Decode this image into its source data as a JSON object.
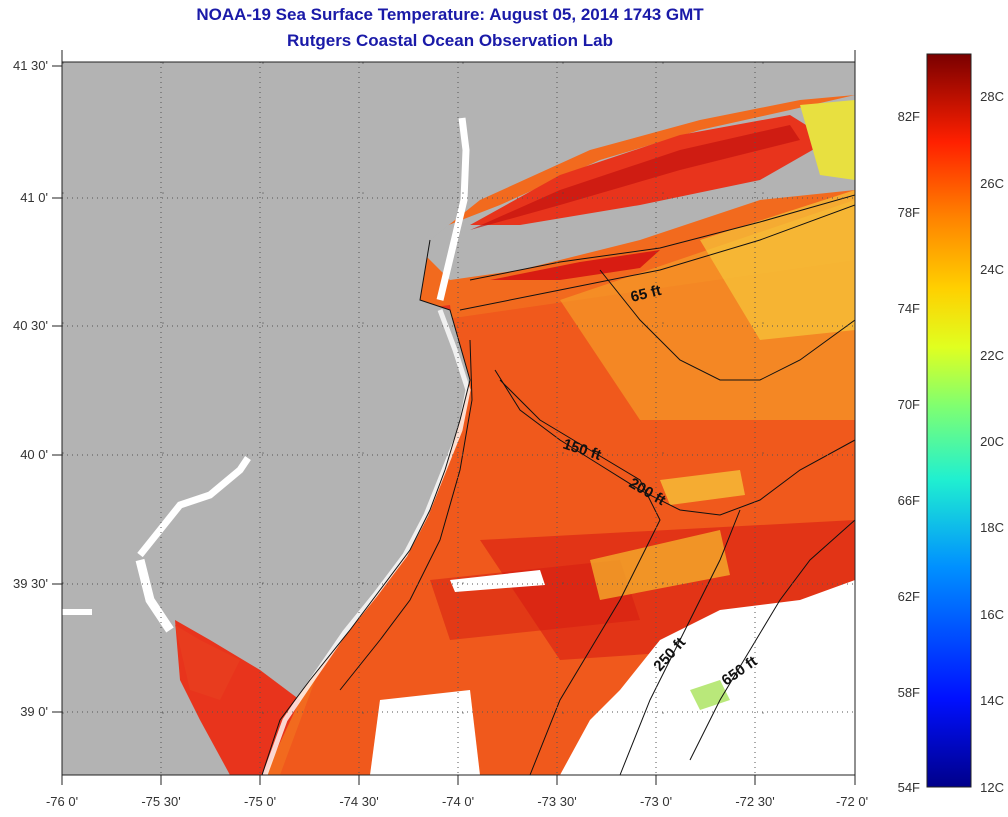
{
  "header": {
    "title": "NOAA-19 Sea Surface Temperature:  August 05, 2014 1743 GMT",
    "subtitle": "Rutgers Coastal Ocean Observation Lab"
  },
  "axes": {
    "x_ticks": [
      "-76 0'",
      "-75 30'",
      "-75 0'",
      "-74 30'",
      "-74 0'",
      "-73 30'",
      "-73 0'",
      "-72 30'",
      "-72 0'"
    ],
    "y_ticks": [
      "41 30'",
      "41 0'",
      "40 30'",
      "40 0'",
      "39 30'",
      "39 0'"
    ]
  },
  "colorbar": {
    "fahrenheit_labels": [
      "82F",
      "78F",
      "74F",
      "70F",
      "66F",
      "62F",
      "58F",
      "54F"
    ],
    "celsius_labels": [
      "28C",
      "26C",
      "24C",
      "22C",
      "20C",
      "18C",
      "16C",
      "14C",
      "12C"
    ]
  },
  "contours": {
    "labels": [
      "65 ft",
      "150 ft",
      "200 ft",
      "250 ft",
      "650 ft"
    ]
  },
  "colors": {
    "land": "#b3b3b3",
    "title": "#1a1aa8",
    "warm": "#e8341c",
    "hot": "#c4120e",
    "mild": "#f08a1e",
    "cool": "#f7d43a"
  }
}
